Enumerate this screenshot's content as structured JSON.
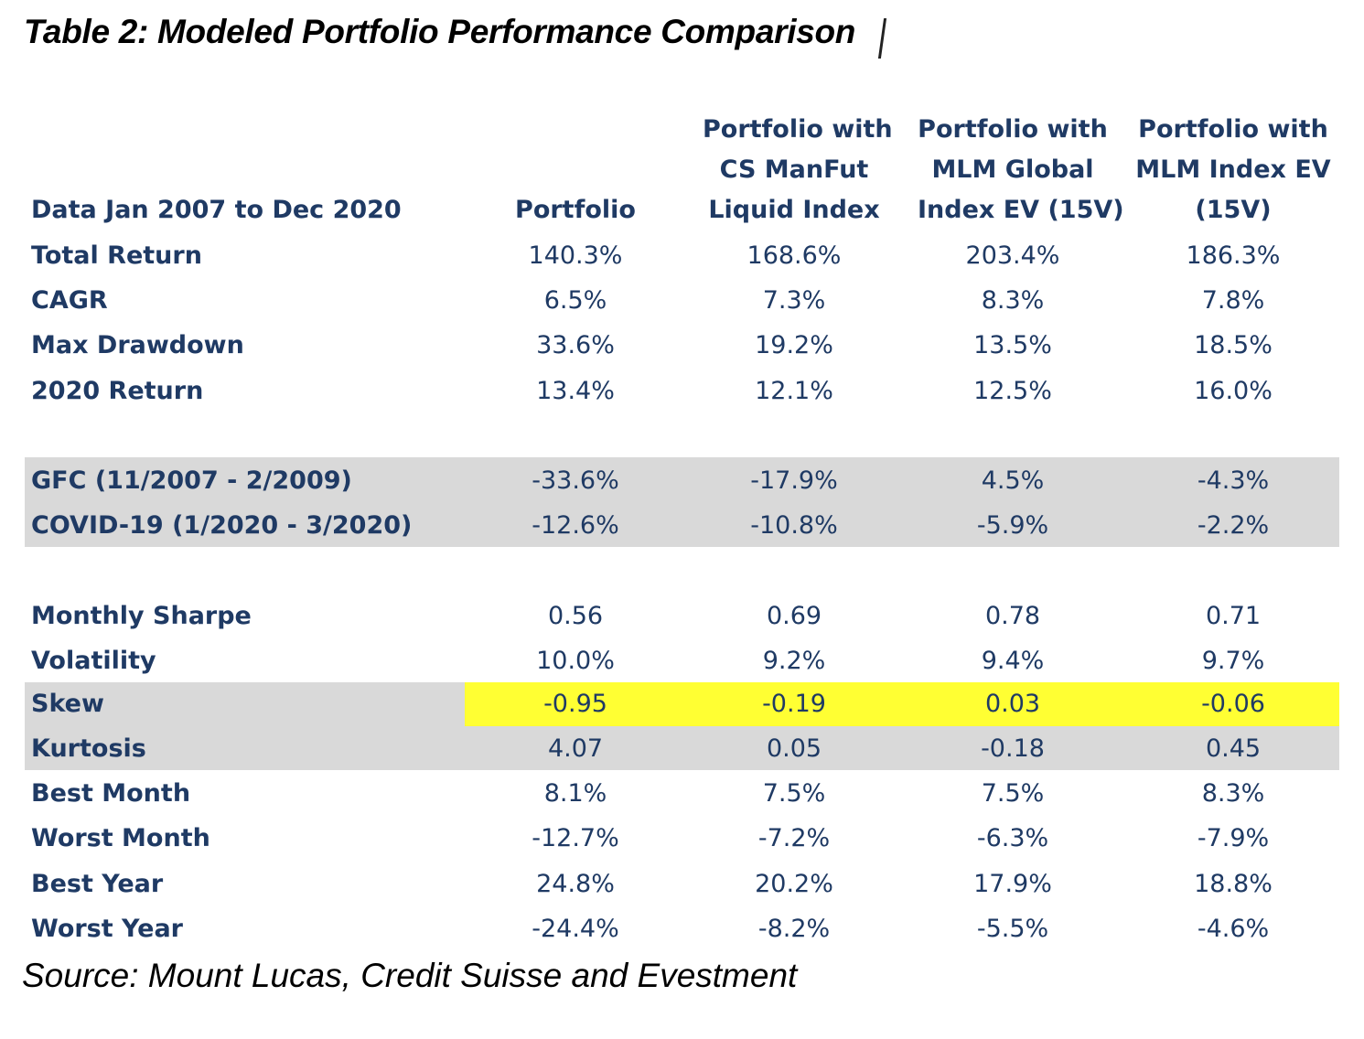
{
  "title": "Table 2: Modeled Portfolio Performance Comparison",
  "source": "Source: Mount Lucas, Credit Suisse and Evestment",
  "header": {
    "period": "Data Jan 2007 to Dec 2020",
    "columns": [
      [
        "Portfolio"
      ],
      [
        "Portfolio with",
        "CS ManFut",
        "Liquid Index"
      ],
      [
        "Portfolio with",
        "MLM Global",
        "Index EV (15V)"
      ],
      [
        "Portfolio with",
        "MLM Index EV",
        "(15V)"
      ]
    ]
  },
  "rows": [
    {
      "label": "Total Return",
      "values": [
        "140.3%",
        "168.6%",
        "203.4%",
        "186.3%"
      ]
    },
    {
      "label": "CAGR",
      "values": [
        "6.5%",
        "7.3%",
        "8.3%",
        "7.8%"
      ]
    },
    {
      "label": "Max Drawdown",
      "values": [
        "33.6%",
        "19.2%",
        "13.5%",
        "18.5%"
      ]
    },
    {
      "label": "2020 Return",
      "values": [
        "13.4%",
        "12.1%",
        "12.5%",
        "16.0%"
      ]
    },
    {
      "label": "GFC (11/2007 - 2/2009)",
      "values": [
        "-33.6%",
        "-17.9%",
        "4.5%",
        "-4.3%"
      ]
    },
    {
      "label": "COVID-19 (1/2020 - 3/2020)",
      "values": [
        "-12.6%",
        "-10.8%",
        "-5.9%",
        "-2.2%"
      ]
    },
    {
      "label": "Monthly Sharpe",
      "values": [
        "0.56",
        "0.69",
        "0.78",
        "0.71"
      ]
    },
    {
      "label": "Volatility",
      "values": [
        "10.0%",
        "9.2%",
        "9.4%",
        "9.7%"
      ]
    },
    {
      "label": "Skew",
      "values": [
        "-0.95",
        "-0.19",
        "0.03",
        "-0.06"
      ]
    },
    {
      "label": "Kurtosis",
      "values": [
        "4.07",
        "0.05",
        "-0.18",
        "0.45"
      ]
    },
    {
      "label": "Best Month",
      "values": [
        "8.1%",
        "7.5%",
        "7.5%",
        "8.3%"
      ]
    },
    {
      "label": "Worst Month",
      "values": [
        "-12.7%",
        "-7.2%",
        "-6.3%",
        "-7.9%"
      ]
    },
    {
      "label": "Best Year",
      "values": [
        "24.8%",
        "20.2%",
        "17.9%",
        "18.8%"
      ]
    },
    {
      "label": "Worst Year",
      "values": [
        "-24.4%",
        "-8.2%",
        "-5.5%",
        "-4.6%"
      ]
    }
  ],
  "colors": {
    "text": "#1f3a64",
    "band": "#d9d9d9",
    "highlight": "#ffff33"
  }
}
